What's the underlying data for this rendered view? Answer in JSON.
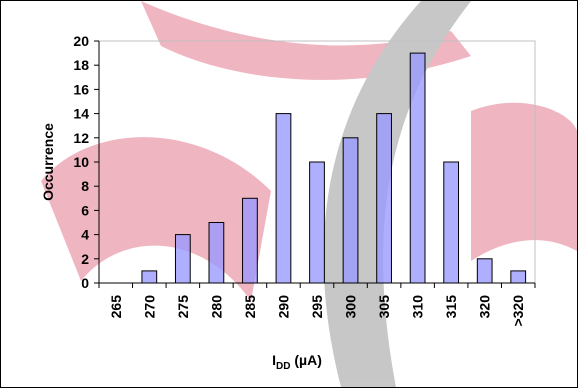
{
  "chart_data": {
    "type": "bar",
    "title": "",
    "xlabel_main": "I",
    "xlabel_sub": "DD",
    "xlabel_unit": " (µA)",
    "ylabel": "Occurrence",
    "categories": [
      "265",
      "270",
      "275",
      "280",
      "285",
      "290",
      "295",
      "300",
      "305",
      "310",
      "315",
      "320",
      ">320"
    ],
    "values": [
      0,
      1,
      4,
      5,
      7,
      14,
      10,
      12,
      14,
      19,
      10,
      2,
      1
    ],
    "ylim": [
      0,
      20
    ],
    "yticks": [
      0,
      2,
      4,
      6,
      8,
      10,
      12,
      14,
      16,
      18,
      20
    ],
    "grid": false,
    "bar_color": "#9999ff",
    "bar_edge_color": "#000000",
    "watermark_colors": [
      "#e27a8e",
      "#9a9a9a"
    ]
  }
}
